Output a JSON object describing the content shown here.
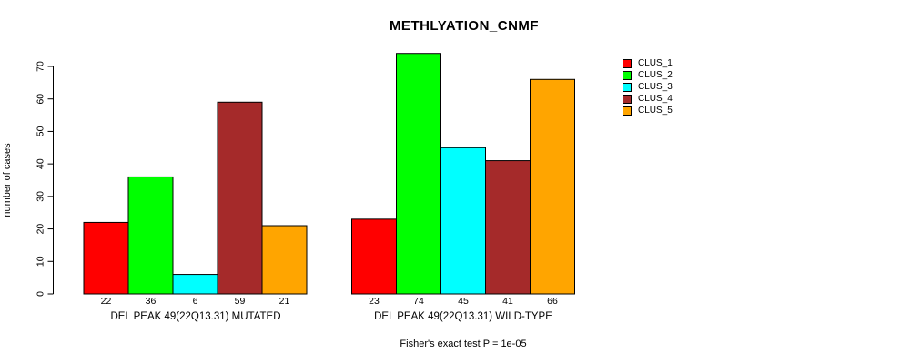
{
  "chart_data": {
    "type": "bar",
    "title": "METHLYATION_CNMF",
    "ylabel": "number of cases",
    "xlabel": "",
    "ylim": [
      0,
      70
    ],
    "yticks": [
      0,
      10,
      20,
      30,
      40,
      50,
      60,
      70
    ],
    "grid": false,
    "legend_position": "right",
    "series": [
      "CLUS_1",
      "CLUS_2",
      "CLUS_3",
      "CLUS_4",
      "CLUS_5"
    ],
    "legend": [
      {
        "label": "CLUS_1",
        "color": "#FF0000"
      },
      {
        "label": "CLUS_2",
        "color": "#00FF00"
      },
      {
        "label": "CLUS_3",
        "color": "#00FFFF"
      },
      {
        "label": "CLUS_4",
        "color": "#A52A2A"
      },
      {
        "label": "CLUS_5",
        "color": "#FFA500"
      }
    ],
    "groups": [
      {
        "label": "DEL PEAK 49(22Q13.31) MUTATED",
        "values": [
          22,
          36,
          6,
          59,
          21
        ]
      },
      {
        "label": "DEL PEAK 49(22Q13.31) WILD-TYPE",
        "values": [
          23,
          74,
          45,
          41,
          66
        ]
      }
    ],
    "annotation": "Fisher's exact test P = 1e-05",
    "bar_colors": [
      "#FF0000",
      "#00FF00",
      "#00FFFF",
      "#A52A2A",
      "#FFA500"
    ],
    "axis_color": "#000000"
  }
}
